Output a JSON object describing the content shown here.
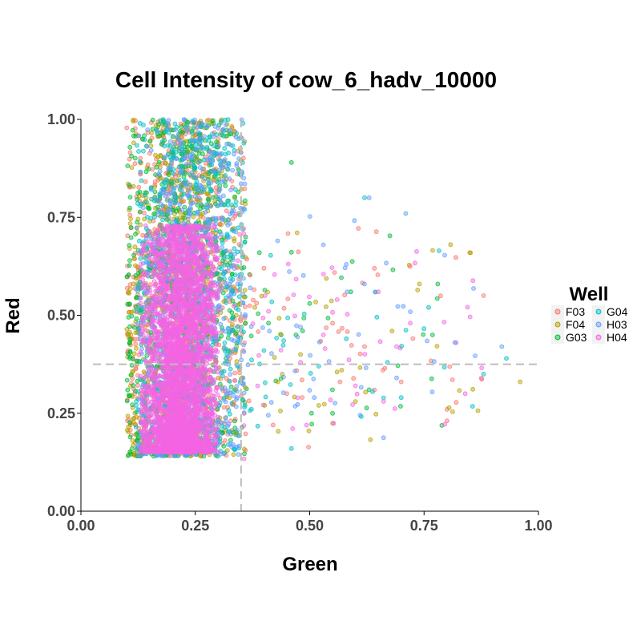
{
  "chart_data": {
    "type": "scatter",
    "title": "Cell Intensity of  cow_6_hadv_10000",
    "xlabel": "Green",
    "ylabel": "Red",
    "xlim": [
      0,
      1
    ],
    "ylim": [
      0,
      1
    ],
    "x_ticks": [
      "0.00",
      "0.25",
      "0.50",
      "0.75",
      "1.00"
    ],
    "y_ticks": [
      "0.00",
      "0.25",
      "0.50",
      "0.75",
      "1.00"
    ],
    "grid": false,
    "threshold_lines": {
      "x": 0.35,
      "y": 0.375
    },
    "legend": {
      "title": "Well",
      "placement": "right"
    },
    "series": [
      {
        "name": "F03",
        "color": "#F8766D"
      },
      {
        "name": "F04",
        "color": "#B79F00"
      },
      {
        "name": "G03",
        "color": "#00BA38"
      },
      {
        "name": "G04",
        "color": "#00BFC4"
      },
      {
        "name": "H03",
        "color": "#619CFF"
      },
      {
        "name": "H04",
        "color": "#F564E3"
      }
    ],
    "sample_points": {
      "F03": [
        [
          0.88,
          0.55
        ],
        [
          0.62,
          0.42
        ],
        [
          0.7,
          0.33
        ],
        [
          0.45,
          0.3
        ],
        [
          0.55,
          0.48
        ],
        [
          0.4,
          0.62
        ],
        [
          0.13,
          0.86
        ],
        [
          0.42,
          0.22
        ],
        [
          0.8,
          0.26
        ],
        [
          0.66,
          0.36
        ]
      ],
      "F04": [
        [
          0.85,
          0.66
        ],
        [
          0.96,
          0.33
        ],
        [
          0.6,
          0.28
        ],
        [
          0.74,
          0.58
        ],
        [
          0.48,
          0.4
        ],
        [
          0.52,
          0.27
        ],
        [
          0.38,
          0.52
        ],
        [
          0.68,
          0.46
        ],
        [
          0.44,
          0.35
        ],
        [
          0.57,
          0.36
        ]
      ],
      "G03": [
        [
          0.46,
          0.89
        ],
        [
          0.5,
          0.53
        ],
        [
          0.41,
          0.48
        ],
        [
          0.78,
          0.58
        ],
        [
          0.55,
          0.25
        ],
        [
          0.39,
          0.66
        ],
        [
          0.63,
          0.31
        ],
        [
          0.36,
          0.7
        ],
        [
          0.47,
          0.45
        ],
        [
          0.59,
          0.56
        ]
      ],
      "G04": [
        [
          0.62,
          0.8
        ],
        [
          0.88,
          0.35
        ],
        [
          0.7,
          0.29
        ],
        [
          0.93,
          0.39
        ],
        [
          0.52,
          0.37
        ],
        [
          0.46,
          0.16
        ],
        [
          0.58,
          0.44
        ],
        [
          0.76,
          0.52
        ],
        [
          0.4,
          0.41
        ],
        [
          0.67,
          0.38
        ]
      ],
      "H03": [
        [
          0.63,
          0.8
        ],
        [
          0.53,
          0.68
        ],
        [
          0.71,
          0.76
        ],
        [
          0.43,
          0.69
        ],
        [
          0.58,
          0.63
        ],
        [
          0.48,
          0.47
        ],
        [
          0.92,
          0.42
        ],
        [
          0.69,
          0.34
        ],
        [
          0.51,
          0.29
        ],
        [
          0.37,
          0.57
        ]
      ],
      "H04": [
        [
          0.65,
          0.56
        ],
        [
          0.72,
          0.48
        ],
        [
          0.82,
          0.43
        ],
        [
          0.56,
          0.54
        ],
        [
          0.84,
          0.3
        ],
        [
          0.48,
          0.38
        ],
        [
          0.69,
          0.42
        ],
        [
          0.41,
          0.51
        ],
        [
          0.6,
          0.32
        ],
        [
          0.53,
          0.45
        ]
      ]
    }
  }
}
